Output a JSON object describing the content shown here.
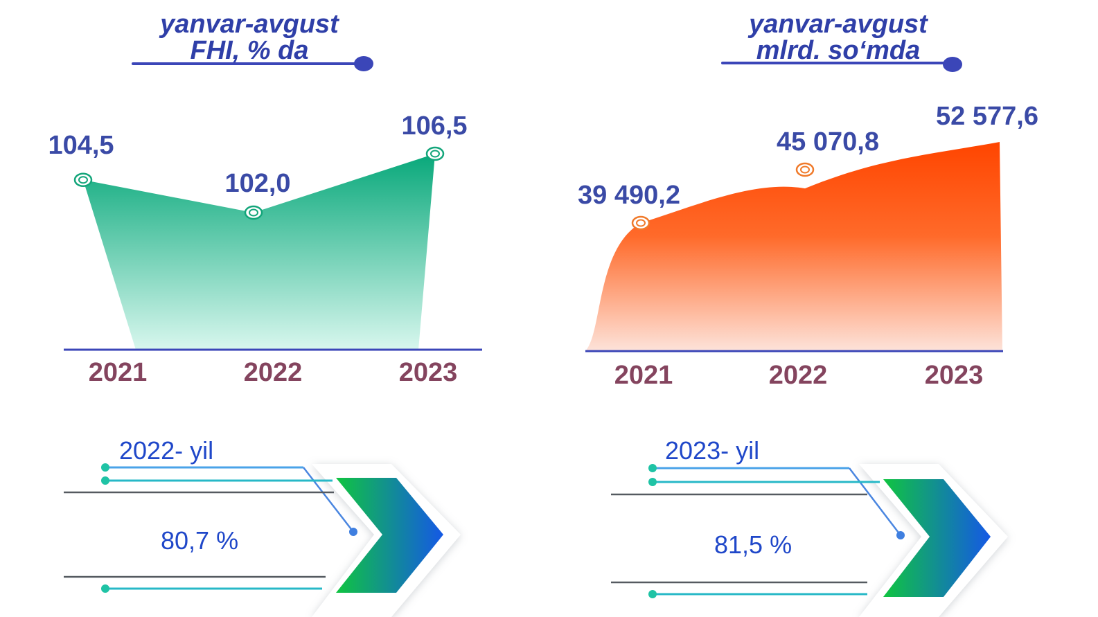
{
  "chart_data": [
    {
      "type": "area",
      "title": "yanvar-avgust",
      "subtitle": "FHI, % da",
      "categories": [
        "2021",
        "2022",
        "2023"
      ],
      "values": [
        104.5,
        102.0,
        106.5
      ],
      "value_labels": [
        "104,5",
        "102,0",
        "106,5"
      ],
      "colors": {
        "top": "#08a87a",
        "bottom": "#d8f7ee",
        "marker": "#13a57a",
        "axis": "#3b46b8"
      }
    },
    {
      "type": "area",
      "title": "yanvar-avgust",
      "subtitle": "mlrd. so‘mda",
      "categories": [
        "2021",
        "2022",
        "2023"
      ],
      "values": [
        39490.2,
        45070.8,
        52577.6
      ],
      "value_labels": [
        "39 490,2",
        "45 070,8",
        "52 577,6"
      ],
      "colors": {
        "top": "#ff4500",
        "bottom": "#fde3da",
        "marker": "#f07a2a",
        "axis": "#3b46b8"
      }
    }
  ],
  "cards": [
    {
      "year_label": "2022- yil",
      "percent": "80,7 %"
    },
    {
      "year_label": "2023- yil",
      "percent": "81,5 %"
    }
  ],
  "colors": {
    "title": "#2f3fa8",
    "value": "#3a4aa6",
    "year": "#84445e",
    "card_text": "#1f47c9"
  }
}
